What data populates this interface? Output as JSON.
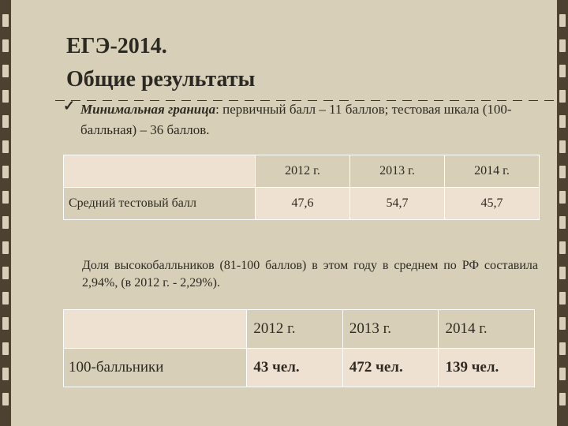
{
  "title_line1": "ЕГЭ-2014.",
  "title_line2": "Общие результаты",
  "bullet": {
    "icon": "check-icon",
    "emphasis": "Минимальная граница",
    "text_rest": ": первичный балл – 11 баллов; тестовая шкала (100-балльная) – 36 баллов."
  },
  "table1": {
    "years": [
      "2012 г.",
      "2013 г.",
      "2014 г."
    ],
    "row_label": "Средний тестовый балл",
    "values": [
      "47,6",
      "54,7",
      "45,7"
    ]
  },
  "paragraph": "Доля высокобалльников (81-100 баллов) в этом году в среднем по РФ составила 2,94%, (в 2012 г. - 2,29%).",
  "table2": {
    "years": [
      "2012 г.",
      "2013 г.",
      "2014 г."
    ],
    "row_label": "100-балльники",
    "values": [
      "43 чел.",
      "472 чел.",
      "139 чел."
    ]
  },
  "colors": {
    "background": "#d8cfb8",
    "strip": "#4d4232",
    "cell_fill": "#efe1d2",
    "cell_border": "#ffffff"
  }
}
